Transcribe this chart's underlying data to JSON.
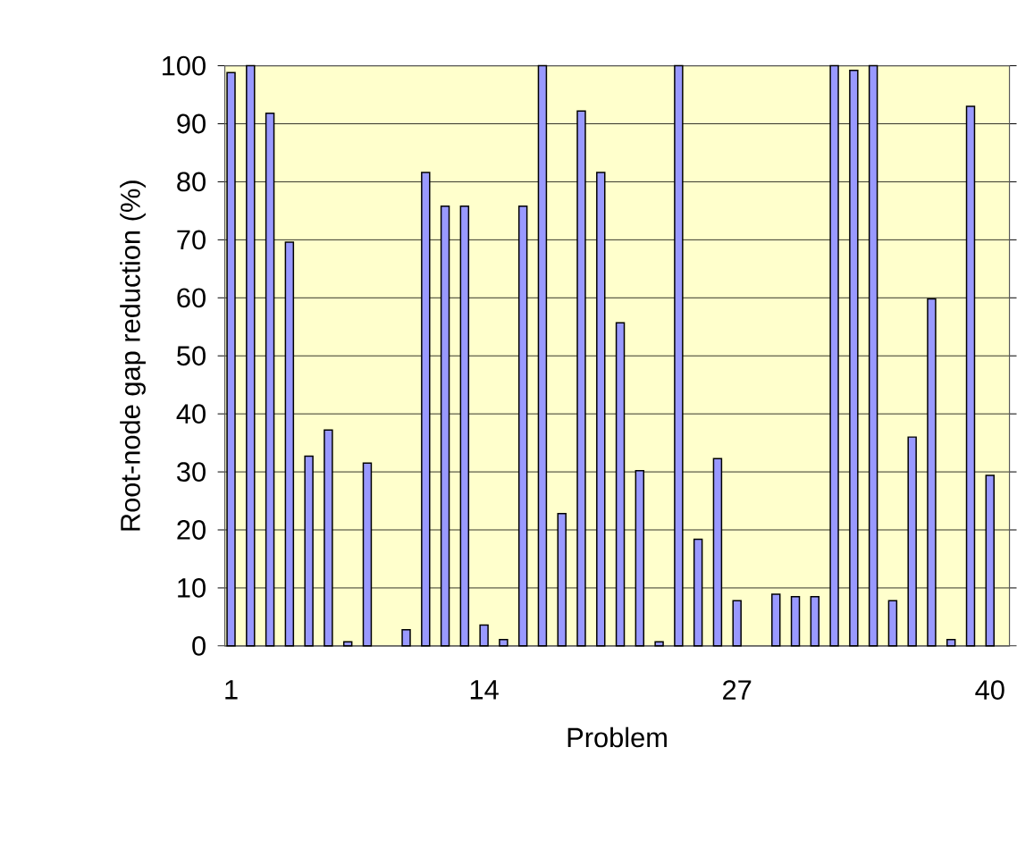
{
  "chart_data": {
    "type": "bar",
    "xlabel": "Problem",
    "ylabel": "Root-node gap reduction (%)",
    "categories": [
      "1",
      null,
      null,
      null,
      null,
      null,
      null,
      null,
      null,
      null,
      null,
      null,
      null,
      "14",
      null,
      null,
      null,
      null,
      null,
      null,
      null,
      null,
      null,
      null,
      null,
      null,
      "27",
      null,
      null,
      null,
      null,
      null,
      null,
      null,
      null,
      null,
      null,
      null,
      null,
      "40"
    ],
    "values": [
      98.8,
      100,
      91.8,
      69.6,
      32.7,
      37.2,
      0.7,
      31.5,
      null,
      2.8,
      81.6,
      75.8,
      75.8,
      3.6,
      1.1,
      75.8,
      100,
      22.8,
      92.2,
      81.6,
      55.7,
      30.2,
      0.7,
      100,
      18.4,
      32.3,
      7.8,
      null,
      8.9,
      8.5,
      8.5,
      100,
      99.2,
      100,
      7.8,
      36,
      59.8,
      1.1,
      93,
      29.4
    ],
    "color": "#9999ff",
    "ylim": [
      0,
      100
    ],
    "yticks": [
      0,
      10,
      20,
      30,
      40,
      50,
      60,
      70,
      80,
      90,
      100
    ],
    "grid": "y"
  }
}
